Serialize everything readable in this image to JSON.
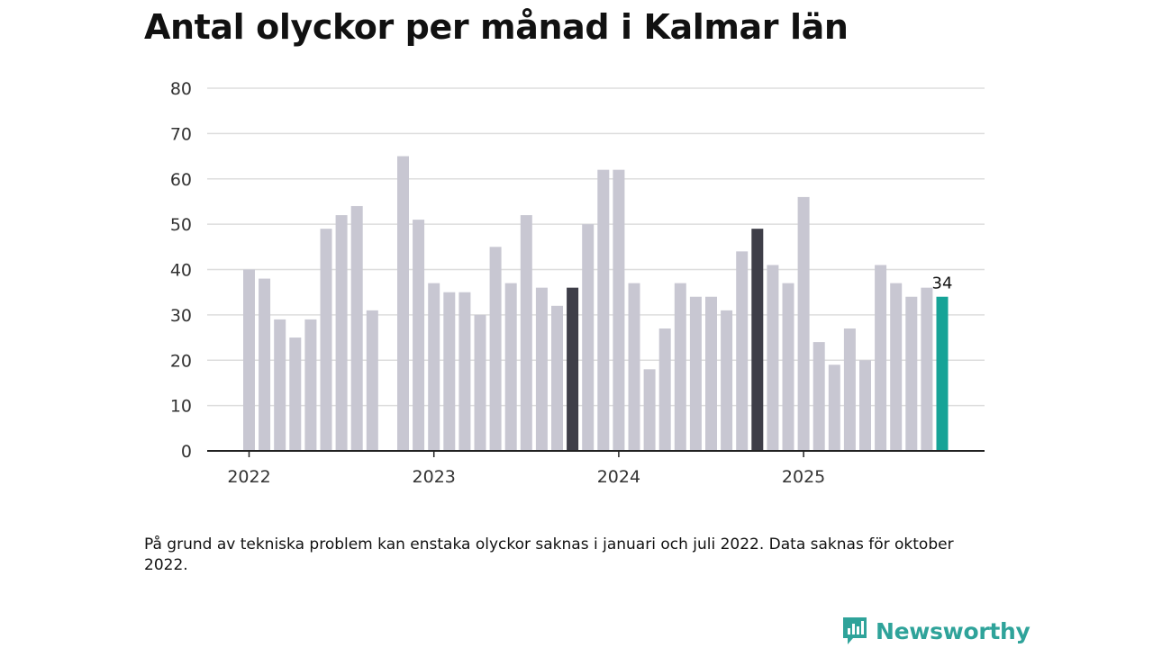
{
  "title": "Antal olyckor per månad i Kalmar län",
  "footnote": "På grund av tekniska problem kan enstaka olyckor saknas i januari och juli 2022. Data saknas för oktober 2022.",
  "brand": {
    "name": "Newsworthy",
    "icon": "newsworthy-chart-icon"
  },
  "colors": {
    "default": "#c8c7d2",
    "highlight": "#3e3e48",
    "latest": "#16a397",
    "grid": "#dddddd",
    "axis": "#222222"
  },
  "chart_data": {
    "type": "bar",
    "x_start": "2022-01",
    "x": [
      "2022-01",
      "2022-02",
      "2022-03",
      "2022-04",
      "2022-05",
      "2022-06",
      "2022-07",
      "2022-08",
      "2022-09",
      "2022-10",
      "2022-11",
      "2022-12",
      "2023-01",
      "2023-02",
      "2023-03",
      "2023-04",
      "2023-05",
      "2023-06",
      "2023-07",
      "2023-08",
      "2023-09",
      "2023-10",
      "2023-11",
      "2023-12",
      "2024-01",
      "2024-02",
      "2024-03",
      "2024-04",
      "2024-05",
      "2024-06",
      "2024-07",
      "2024-08",
      "2024-09",
      "2024-10",
      "2024-11",
      "2024-12",
      "2025-01",
      "2025-02",
      "2025-03",
      "2025-04",
      "2025-05",
      "2025-06",
      "2025-07",
      "2025-08",
      "2025-09",
      "2025-10"
    ],
    "values": [
      40,
      38,
      29,
      25,
      29,
      49,
      52,
      54,
      31,
      null,
      65,
      51,
      37,
      35,
      35,
      30,
      45,
      37,
      52,
      36,
      32,
      36,
      50,
      62,
      62,
      37,
      18,
      27,
      37,
      34,
      34,
      31,
      44,
      49,
      41,
      37,
      56,
      24,
      19,
      27,
      20,
      41,
      37,
      34,
      36,
      34
    ],
    "highlight_indices": [
      21,
      33
    ],
    "latest_index": 45,
    "data_labels": [
      {
        "index": 45,
        "text": "34"
      }
    ],
    "ylim": [
      0,
      80
    ],
    "yticks": [
      0,
      10,
      20,
      30,
      40,
      50,
      60,
      70,
      80
    ],
    "xtick_labels": [
      {
        "index": 0,
        "label": "2022"
      },
      {
        "index": 12,
        "label": "2023"
      },
      {
        "index": 24,
        "label": "2024"
      },
      {
        "index": 36,
        "label": "2025"
      }
    ],
    "xlabel": "",
    "ylabel": "",
    "grid": true,
    "legend": "none"
  }
}
